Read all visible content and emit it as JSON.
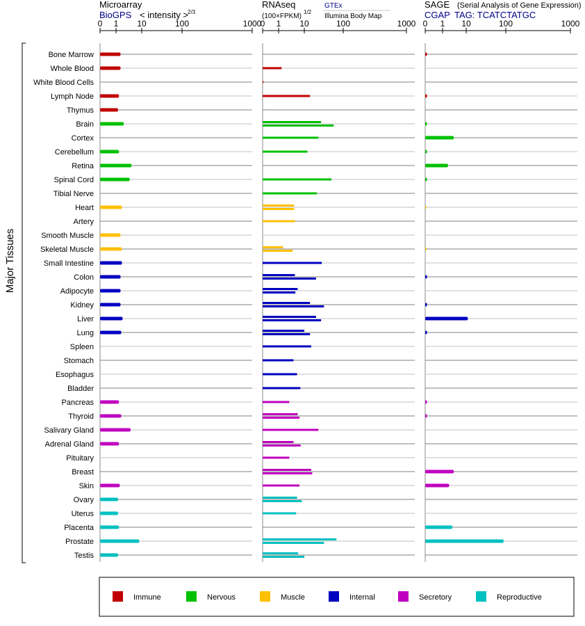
{
  "colors": {
    "Immune": "#c00000",
    "Nervous": "#00c000",
    "Muscle": "#ffc000",
    "Internal": "#0000c0",
    "Secretory": "#c000c0",
    "Reproductive": "#00c0c0"
  },
  "headers": {
    "microarray": {
      "title": "Microarray",
      "source": "BioGPS",
      "unit": "< intensity >",
      "unit_exp": "2/3"
    },
    "rnaseq": {
      "title": "RNAseq",
      "unit": "(100×FPKM)",
      "unit_exp": "1/2",
      "source": "GTEx",
      "source2": "Illumina Body Map"
    },
    "sage": {
      "title": "SAGE",
      "subtitle": "(Serial Analysis of Gene Expression)",
      "source": "CGAP",
      "tag": "TAG: TCATCTATGC"
    }
  },
  "axis_ticks": [
    "0",
    "1",
    "10",
    "100",
    "1000"
  ],
  "ylabel": "Major Tissues",
  "legend": [
    "Immune",
    "Nervous",
    "Muscle",
    "Internal",
    "Secretory",
    "Reproductive"
  ],
  "chart_data": {
    "type": "bar",
    "scale": "power-compressed (0, 1, 10, 100, 1000)",
    "xlim": [
      0,
      1000
    ],
    "tissues": [
      {
        "name": "Bone Marrow",
        "system": "Immune",
        "microarray": 1.5,
        "rnaseq": [],
        "sage": 0.1
      },
      {
        "name": "Whole Blood",
        "system": "Immune",
        "microarray": 1.5,
        "rnaseq": [
          1.3
        ],
        "sage": null
      },
      {
        "name": "White Blood Cells",
        "system": "Immune",
        "microarray": null,
        "rnaseq": [
          0.05
        ],
        "sage": null
      },
      {
        "name": "Lymph Node",
        "system": "Immune",
        "microarray": 1.3,
        "rnaseq": [
          14
        ],
        "sage": 0.1
      },
      {
        "name": "Thymus",
        "system": "Immune",
        "microarray": 1.2,
        "rnaseq": [],
        "sage": null
      },
      {
        "name": "Brain",
        "system": "Nervous",
        "microarray": 2.0,
        "rnaseq": [
          27,
          57
        ],
        "sage": 0.1
      },
      {
        "name": "Cortex",
        "system": "Nervous",
        "microarray": null,
        "rnaseq": [
          23
        ],
        "sage": 3.0
      },
      {
        "name": "Cerebellum",
        "system": "Nervous",
        "microarray": 1.3,
        "rnaseq": [
          12
        ],
        "sage": 0.1
      },
      {
        "name": "Retina",
        "system": "Nervous",
        "microarray": 4.0,
        "rnaseq": [],
        "sage": 1.7
      },
      {
        "name": "Spinal Cord",
        "system": "Nervous",
        "microarray": 3.4,
        "rnaseq": [
          50
        ],
        "sage": 0.1
      },
      {
        "name": "Tibial Nerve",
        "system": "Nervous",
        "microarray": null,
        "rnaseq": [
          21
        ],
        "sage": null
      },
      {
        "name": "Heart",
        "system": "Muscle",
        "microarray": 1.7,
        "rnaseq": [
          4.0,
          4.0
        ],
        "sage": 0.05
      },
      {
        "name": "Artery",
        "system": "Muscle",
        "microarray": null,
        "rnaseq": [
          4.3
        ],
        "sage": null
      },
      {
        "name": "Smooth Muscle",
        "system": "Muscle",
        "microarray": 1.5,
        "rnaseq": [],
        "sage": null
      },
      {
        "name": "Skeletal Muscle",
        "system": "Muscle",
        "microarray": 1.7,
        "rnaseq": [
          1.5,
          3.5
        ],
        "sage": 0.05
      },
      {
        "name": "Small Intestine",
        "system": "Internal",
        "microarray": 1.7,
        "rnaseq": [
          28
        ],
        "sage": null
      },
      {
        "name": "Colon",
        "system": "Internal",
        "microarray": 1.5,
        "rnaseq": [
          4.3,
          20
        ],
        "sage": 0.1
      },
      {
        "name": "Adipocyte",
        "system": "Internal",
        "microarray": 1.5,
        "rnaseq": [
          5.5,
          4.5
        ],
        "sage": null
      },
      {
        "name": "Kidney",
        "system": "Internal",
        "microarray": 1.5,
        "rnaseq": [
          14,
          32
        ],
        "sage": 0.1
      },
      {
        "name": "Liver",
        "system": "Internal",
        "microarray": 1.8,
        "rnaseq": [
          20,
          27
        ],
        "sage": 11
      },
      {
        "name": "Lung",
        "system": "Internal",
        "microarray": 1.6,
        "rnaseq": [
          10,
          14
        ],
        "sage": 0.1
      },
      {
        "name": "Spleen",
        "system": "Internal",
        "microarray": null,
        "rnaseq": [
          15
        ],
        "sage": null
      },
      {
        "name": "Stomach",
        "system": "Internal",
        "microarray": null,
        "rnaseq": [
          3.8
        ],
        "sage": null
      },
      {
        "name": "Esophagus",
        "system": "Internal",
        "microarray": null,
        "rnaseq": [
          5.2
        ],
        "sage": null
      },
      {
        "name": "Bladder",
        "system": "Internal",
        "microarray": null,
        "rnaseq": [
          7.0
        ],
        "sage": null
      },
      {
        "name": "Pancreas",
        "system": "Secretory",
        "microarray": 1.3,
        "rnaseq": [
          2.6
        ],
        "sage": 0.1
      },
      {
        "name": "Thyroid",
        "system": "Secretory",
        "microarray": 1.6,
        "rnaseq": [
          5.5,
          6.5
        ],
        "sage": 0.1
      },
      {
        "name": "Salivary Gland",
        "system": "Secretory",
        "microarray": 3.7,
        "rnaseq": [
          23
        ],
        "sage": null
      },
      {
        "name": "Adrenal Gland",
        "system": "Secretory",
        "microarray": 1.3,
        "rnaseq": [
          3.8,
          7.2
        ],
        "sage": null
      },
      {
        "name": "Pituitary",
        "system": "Secretory",
        "microarray": null,
        "rnaseq": [
          2.6
        ],
        "sage": null
      },
      {
        "name": "Breast",
        "system": "Secretory",
        "microarray": null,
        "rnaseq": [
          15,
          16
        ],
        "sage": 3.0
      },
      {
        "name": "Skin",
        "system": "Secretory",
        "microarray": 1.4,
        "rnaseq": [
          6.5
        ],
        "sage": 1.9
      },
      {
        "name": "Ovary",
        "system": "Reproductive",
        "microarray": 1.2,
        "rnaseq": [
          5.2,
          8.0
        ],
        "sage": null
      },
      {
        "name": "Uterus",
        "system": "Reproductive",
        "microarray": 1.2,
        "rnaseq": [
          4.8
        ],
        "sage": null
      },
      {
        "name": "Placenta",
        "system": "Reproductive",
        "microarray": 1.3,
        "rnaseq": [],
        "sage": 2.6
      },
      {
        "name": "Prostate",
        "system": "Reproductive",
        "microarray": 8.0,
        "rnaseq": [
          67,
          32
        ],
        "sage": 88
      },
      {
        "name": "Testis",
        "system": "Reproductive",
        "microarray": 1.2,
        "rnaseq": [
          5.8,
          10
        ],
        "sage": null
      }
    ]
  }
}
